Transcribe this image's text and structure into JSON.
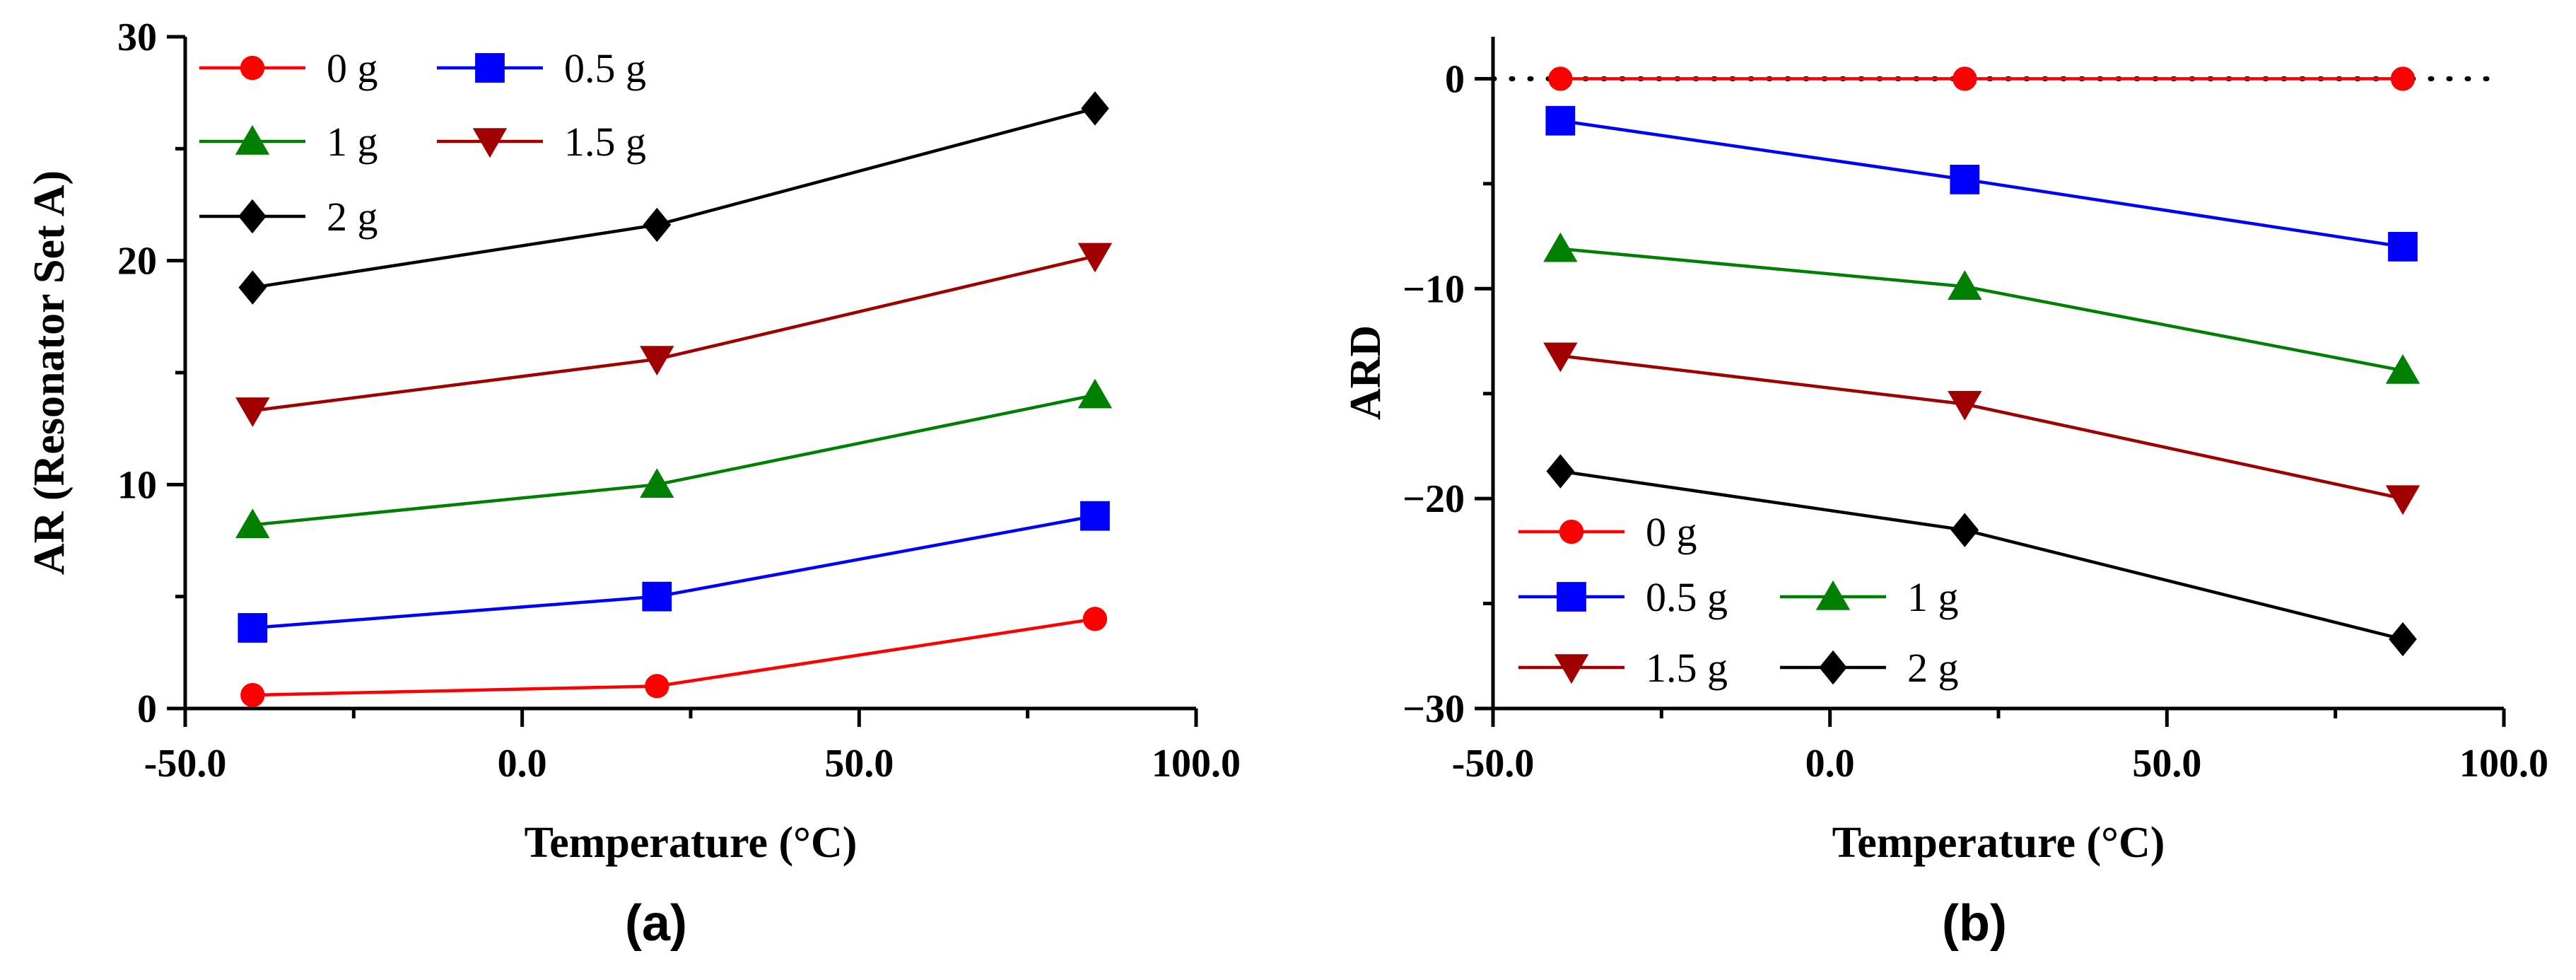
{
  "chart_data": [
    {
      "type": "line",
      "panel_label": "(a)",
      "xlabel": "Temperature (°C)",
      "ylabel": "AR (Resonator Set  A)",
      "xlim": [
        -50,
        100
      ],
      "ylim": [
        0,
        30
      ],
      "xticks": [
        -50,
        0,
        50,
        100
      ],
      "xtick_labels": [
        "-50.0",
        "0.0",
        "50.0",
        "100.0"
      ],
      "yticks": [
        0,
        10,
        20,
        30
      ],
      "ytick_labels": [
        "0",
        "10",
        "20",
        "30"
      ],
      "x": [
        -40,
        20,
        85
      ],
      "series": [
        {
          "name": "0 g",
          "color": "#ff0000",
          "marker": "circle",
          "values": [
            0.6,
            1.0,
            4.0
          ]
        },
        {
          "name": "0.5 g",
          "color": "#0000ff",
          "marker": "square",
          "values": [
            3.6,
            5.0,
            8.6
          ]
        },
        {
          "name": "1 g",
          "color": "#008000",
          "marker": "triangle-up",
          "values": [
            8.2,
            10.0,
            14.0
          ]
        },
        {
          "name": "1.5 g",
          "color": "#a00000",
          "marker": "triangle-down",
          "values": [
            13.3,
            15.6,
            20.2
          ]
        },
        {
          "name": "2 g",
          "color": "#000000",
          "marker": "diamond",
          "values": [
            18.8,
            21.6,
            26.8
          ]
        }
      ],
      "legend_position": "top-left",
      "zero_reference_line": false
    },
    {
      "type": "line",
      "panel_label": "(b)",
      "xlabel": "Temperature (°C)",
      "ylabel": "ARD",
      "xlim": [
        -50,
        100
      ],
      "ylim": [
        -30,
        2
      ],
      "xticks": [
        -50,
        0,
        50,
        100
      ],
      "xtick_labels": [
        "-50.0",
        "0.0",
        "50.0",
        "100.0"
      ],
      "yticks": [
        -30,
        -20,
        -10,
        0
      ],
      "ytick_labels": [
        "−30",
        "−20",
        "−10",
        "0"
      ],
      "x": [
        -40,
        20,
        85
      ],
      "series": [
        {
          "name": "0 g",
          "color": "#ff0000",
          "marker": "circle",
          "values": [
            0,
            0,
            0
          ]
        },
        {
          "name": "0.5 g",
          "color": "#0000ff",
          "marker": "square",
          "values": [
            -2.0,
            -4.8,
            -8.0
          ]
        },
        {
          "name": "1 g",
          "color": "#008000",
          "marker": "triangle-up",
          "values": [
            -8.1,
            -9.9,
            -13.9
          ]
        },
        {
          "name": "1.5 g",
          "color": "#a00000",
          "marker": "triangle-down",
          "values": [
            -13.2,
            -15.5,
            -20.0
          ]
        },
        {
          "name": "2 g",
          "color": "#000000",
          "marker": "diamond",
          "values": [
            -18.7,
            -21.5,
            -26.7
          ]
        }
      ],
      "legend_position": "bottom-left",
      "zero_reference_line": true
    }
  ]
}
